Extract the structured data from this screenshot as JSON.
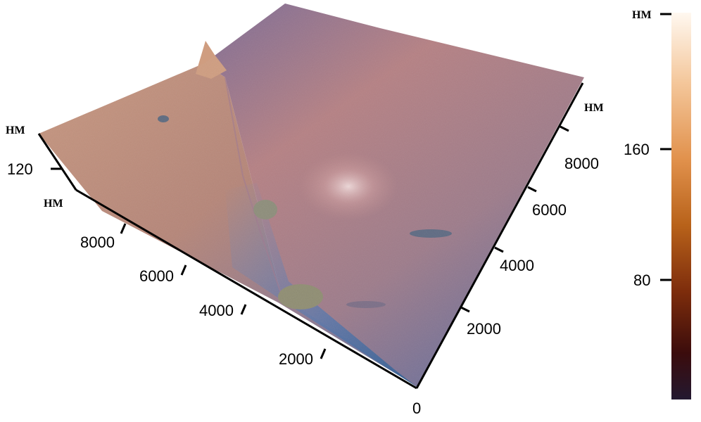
{
  "plot": {
    "x_axis": {
      "unit": "HM",
      "ticks": [
        "2000",
        "4000",
        "6000",
        "8000"
      ]
    },
    "y_axis": {
      "unit": "HM",
      "ticks": [
        "0",
        "2000",
        "4000",
        "6000",
        "8000"
      ]
    },
    "z_axis": {
      "unit": "HM",
      "ticks": [
        "120"
      ]
    }
  },
  "colorbar": {
    "unit": "HM",
    "ticks": [
      "160",
      "80"
    ],
    "colors": [
      "#fff8f0",
      "#f4c79b",
      "#e1914c",
      "#b8621a",
      "#7e2d0c",
      "#3b0c0c",
      "#231830"
    ]
  },
  "surface": {
    "colors": [
      "#7b6f9a",
      "#b07f87",
      "#c78d7a",
      "#5d6fa8",
      "#2a5a8f"
    ]
  }
}
